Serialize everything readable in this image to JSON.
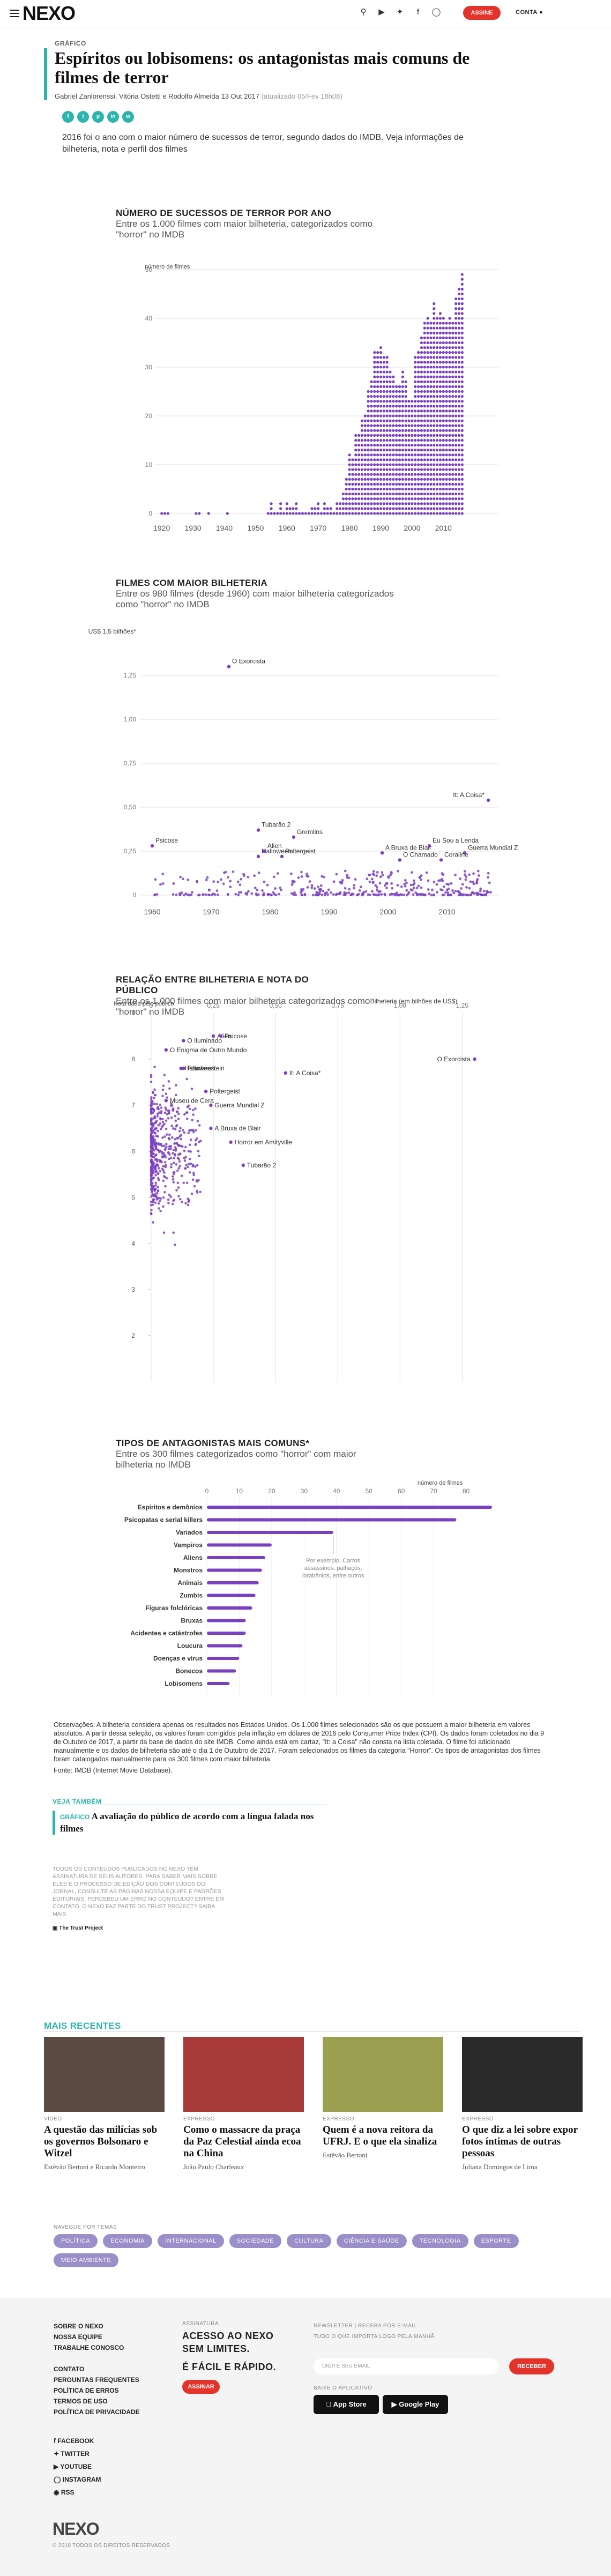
{
  "header": {
    "logo_text": "NEXO",
    "signup_label": "ASSINE",
    "account_label": "CONTA"
  },
  "article": {
    "category": "GRÁFICO",
    "title": "Espíritos ou lobisomens: os antagonistas mais comuns de filmes de terror",
    "byline": "Gabriel Zanlorenssi, Vitória Ostetti e Rodolfo Almeida 13 Out 2017",
    "updated": "(atualizado 05/Fev 18h08)",
    "lede": "2016 foi o ano com o maior número de sucessos de terror, segundo dados do IMDB. Veja informações de bilheteria, nota e perfil dos filmes"
  },
  "colors": {
    "accent": "#2bb5ac",
    "purple": "#7b3fc4",
    "red": "#e4332b"
  },
  "chart_data": [
    {
      "type": "scatter",
      "title": "NÚMERO DE SUCESSOS DE TERROR POR ANO",
      "subtitle": "Entre os 1.000 filmes com maior bilheteria, categorizados como \"horror\" no IMDB",
      "ylabel": "número de filmes",
      "xlim": [
        1918,
        2018
      ],
      "ylim": [
        0,
        50
      ],
      "xticks": [
        "1920",
        "1930",
        "1940",
        "1950",
        "1960",
        "1970",
        "1980",
        "1990",
        "2000",
        "2010"
      ],
      "yticks": [
        "0",
        "10",
        "20",
        "30",
        "40",
        "50"
      ],
      "x": [
        1920,
        1921,
        1922,
        1923,
        1924,
        1925,
        1926,
        1927,
        1928,
        1929,
        1930,
        1931,
        1932,
        1933,
        1934,
        1935,
        1936,
        1937,
        1938,
        1939,
        1940,
        1941,
        1942,
        1943,
        1944,
        1945,
        1946,
        1947,
        1948,
        1949,
        1950,
        1951,
        1952,
        1953,
        1954,
        1955,
        1956,
        1957,
        1958,
        1959,
        1960,
        1961,
        1962,
        1963,
        1964,
        1965,
        1966,
        1967,
        1968,
        1969,
        1970,
        1971,
        1972,
        1973,
        1974,
        1975,
        1976,
        1977,
        1978,
        1979,
        1980,
        1981,
        1982,
        1983,
        1984,
        1985,
        1986,
        1987,
        1988,
        1989,
        1990,
        1991,
        1992,
        1993,
        1994,
        1995,
        1996,
        1997,
        1998,
        1999,
        2000,
        2001,
        2002,
        2003,
        2004,
        2005,
        2006,
        2007,
        2008,
        2009,
        2010,
        2011,
        2012,
        2013,
        2014,
        2015,
        2016
      ],
      "values": [
        1,
        1,
        1,
        0,
        0,
        0,
        0,
        0,
        0,
        0,
        0,
        1,
        1,
        0,
        0,
        1,
        0,
        0,
        0,
        0,
        0,
        1,
        0,
        0,
        0,
        0,
        0,
        0,
        0,
        0,
        0,
        0,
        0,
        0,
        1,
        3,
        1,
        1,
        3,
        1,
        3,
        2,
        2,
        3,
        1,
        1,
        1,
        1,
        2,
        2,
        3,
        1,
        3,
        2,
        2,
        1,
        3,
        3,
        5,
        8,
        13,
        12,
        17,
        17,
        20,
        21,
        26,
        28,
        34,
        34,
        35,
        33,
        33,
        30,
        29,
        27,
        27,
        30,
        28,
        24,
        24,
        33,
        34,
        37,
        40,
        41,
        40,
        44,
        41,
        42,
        41,
        40,
        41,
        40,
        45,
        47,
        50
      ],
      "color": "#7b3fc4"
    },
    {
      "type": "scatter",
      "title": "FILMES COM MAIOR BILHETERIA",
      "subtitle": "Entre os 980 filmes (desde 1960) com maior bilheteria categorizados como \"horror\" no IMDB",
      "ylabel": "US$ 1,5 bilhões*",
      "xlim": [
        1958,
        2018
      ],
      "ylim": [
        0,
        1.5
      ],
      "xticks": [
        "1960",
        "1970",
        "1980",
        "1990",
        "2000",
        "2010"
      ],
      "yticks": [
        "0",
        "0,25",
        "0,50",
        "0,75",
        "1,00",
        "1,25"
      ],
      "labeled_points": [
        {
          "name": "O Exorcista",
          "x": 1973,
          "y": 1.3
        },
        {
          "name": "It: A Coisa*",
          "x": 2017,
          "y": 0.54
        },
        {
          "name": "Tubarão 2",
          "x": 1978,
          "y": 0.37
        },
        {
          "name": "Gremlins",
          "x": 1984,
          "y": 0.33
        },
        {
          "name": "Psicose",
          "x": 1960,
          "y": 0.28
        },
        {
          "name": "Halloween",
          "x": 1978,
          "y": 0.22
        },
        {
          "name": "Alien",
          "x": 1979,
          "y": 0.25
        },
        {
          "name": "Poltergeist",
          "x": 1982,
          "y": 0.22
        },
        {
          "name": "A Bruxa de Blair",
          "x": 1999,
          "y": 0.24
        },
        {
          "name": "Guerra Mundial Z",
          "x": 2013,
          "y": 0.24
        },
        {
          "name": "O Chamado",
          "x": 2002,
          "y": 0.2
        },
        {
          "name": "Eu Sou a Lenda",
          "x": 2007,
          "y": 0.28
        },
        {
          "name": "Coraline",
          "x": 2009,
          "y": 0.2
        }
      ]
    },
    {
      "type": "scatter",
      "title": "RELAÇÃO ENTRE BILHETERIA E NOTA DO PÚBLICO",
      "subtitle": "Entre os 1.000 filmes com maior bilheteria categorizados como \"horror\" no IMDB",
      "xlabel": "Bilheteria (em bilhões de US$)",
      "ylabel": "Nota dada pelo público",
      "xlim": [
        0,
        1.4
      ],
      "ylim": [
        1,
        9
      ],
      "xticks": [
        "0",
        "0,25",
        "0,50",
        "0,75",
        "1,00",
        "1,25"
      ],
      "yticks": [
        "2",
        "3",
        "4",
        "5",
        "6",
        "7",
        "8",
        "9"
      ],
      "labeled_points": [
        {
          "name": "O Iluminado",
          "x": 0.13,
          "y": 8.4
        },
        {
          "name": "Alien",
          "x": 0.25,
          "y": 8.5
        },
        {
          "name": "Psicose",
          "x": 0.28,
          "y": 8.5
        },
        {
          "name": "O Enigma de Outro Mundo",
          "x": 0.06,
          "y": 8.2
        },
        {
          "name": "Frankenstein",
          "x": 0.13,
          "y": 7.8
        },
        {
          "name": "Halloween",
          "x": 0.12,
          "y": 7.8
        },
        {
          "name": "It: A Coisa*",
          "x": 0.54,
          "y": 7.7
        },
        {
          "name": "O Exorcista",
          "x": 1.3,
          "y": 8
        },
        {
          "name": "Poltergeist",
          "x": 0.22,
          "y": 7.3
        },
        {
          "name": "Museu de Cera",
          "x": 0.06,
          "y": 7.1
        },
        {
          "name": "Guerra Mundial Z",
          "x": 0.24,
          "y": 7
        },
        {
          "name": "A Bruxa de Blair",
          "x": 0.24,
          "y": 6.5
        },
        {
          "name": "Horror em Amityville",
          "x": 0.32,
          "y": 6.2
        },
        {
          "name": "Tubarão 2",
          "x": 0.37,
          "y": 5.7
        }
      ]
    },
    {
      "type": "bar",
      "title": "TIPOS DE ANTAGONISTAS MAIS COMUNS*",
      "subtitle": "Entre os 300 filmes categorizados como \"horror\" com maior bilheteria no IMDB",
      "legend_label": "número de filmes",
      "annotation": "Por exemplo, Carros assassinos, palhaços, lorabênios, entre outros",
      "xlim": [
        0,
        90
      ],
      "xticks": [
        "0",
        "10",
        "20",
        "30",
        "40",
        "50",
        "60",
        "70",
        "80"
      ],
      "categories": [
        "Espíritos e demônios",
        "Psicopatas e serial killers",
        "Variados",
        "Vampiros",
        "Aliens",
        "Monstros",
        "Animais",
        "Zumbis",
        "Figuras folclóricas",
        "Bruxas",
        "Acidentes e catástrofes",
        "Loucura",
        "Doenças e vírus",
        "Bonecos",
        "Lobisomens"
      ],
      "values": [
        88,
        77,
        39,
        20,
        18,
        17,
        16,
        15,
        14,
        12,
        12,
        11,
        10,
        9,
        7
      ],
      "color": "#7b3fc4"
    }
  ],
  "notes": "Observações: A bilheteria considera apenas os resultados nos Estados Unidos. Os 1.000 filmes selecionados são os que possuem a maior bilheteria em valores absolutos. A partir dessa seleção, os valores foram corrigidos pela inflação em dólares de 2016 pelo Consumer Price Index (CPI). Os dados foram coletados no dia 9 de Outubro de 2017, a partir da base de dados do site IMDB. Como ainda está em cartaz, \"It: a Coisa\" não consta na lista coletada. O filme foi adicionado manualmente e os dados de bilheteria são até o dia 1 de Outubro de 2017. Foram selecionados os filmes da categoria \"Horror\". Os tipos de antagonistas dos filmes foram catalogados manualmente para os 300 filmes com maior bilheteria.",
  "source": "Fonte: IMDB (Internet Movie Database).",
  "see_also": {
    "label": "VEJA TAMBÉM",
    "tag": "GRÁFICO",
    "title": "A avaliação do público de acordo com a língua falada nos filmes"
  },
  "disclaimer": "Todos os conteúdos publicados no Nexo têm assinatura de seus autores. Para saber mais sobre eles e o processo de edição dos conteúdos do jornal, consulte as páginas Nossa equipe e Padrões editoriais. Percebeu um erro no conteúdo? Entre em contato. O Nexo faz parte do Trust Project? Saiba mais",
  "trust_label": "The Trust Project",
  "recent": {
    "label": "MAIS RECENTES",
    "cards": [
      {
        "tag": "VÍDEO",
        "title": "A questão das milícias sob os governos Bolsonaro e Witzel",
        "author": "Estêvão Bertoni e Ricardo Monteiro",
        "color": "#5a4a42"
      },
      {
        "tag": "EXPRESSO",
        "title": "Como o massacre da praça da Paz Celestial ainda ecoa na China",
        "author": "João Paulo Charleaux",
        "color": "#a83a3a"
      },
      {
        "tag": "EXPRESSO",
        "title": "Quem é a nova reitora da UFRJ. E o que ela sinaliza",
        "author": "Estêvão Bertoni",
        "color": "#9aa050"
      },
      {
        "tag": "EXPRESSO",
        "title": "O que diz a lei sobre expor fotos íntimas de outras pessoas",
        "author": "Juliana Domingos de Lima",
        "color": "#2a2a2a"
      }
    ]
  },
  "nav": {
    "label": "NAVEGUE POR TEMAS",
    "topics": [
      "POLÍTICA",
      "ECONOMIA",
      "INTERNACIONAL",
      "SOCIEDADE",
      "CULTURA",
      "CIÊNCIA E SAÚDE",
      "TECNOLOGIA",
      "ESPORTE",
      "MEIO AMBIENTE"
    ]
  },
  "footer": {
    "links": [
      "SOBRE O NEXO",
      "NOSSA EQUIPE",
      "TRABALHE CONOSCO",
      "",
      "CONTATO",
      "PERGUNTAS FREQUENTES",
      "POLÍTICA DE ERROS",
      "TERMOS DE USO",
      "POLÍTICA DE PRIVACIDADE"
    ],
    "sub_label": "ASSINATURA",
    "sub_title": "ACESSO AO NEXO SEM LIMITES.",
    "sub_tag": "É FÁCIL E RÁPIDO.",
    "sub_button": "ASSINAR",
    "newsletter_label": "NEWSLETTER | RECEBA POR E-MAIL",
    "newsletter_sub": "TUDO O QUE IMPORTA LOGO PELA MANHÃ",
    "email_placeholder": "DIGITE SEU EMAIL",
    "newsletter_button": "RECEBER",
    "app_label": "BAIXE O APLICATIVO",
    "app_store": "App Store",
    "google_play": "Google Play",
    "social": [
      "FACEBOOK",
      "TWITTER",
      "YOUTUBE",
      "INSTAGRAM",
      "RSS"
    ],
    "logo": "NEXO",
    "copyright": "© 2019 TODOS OS DIREITOS RESERVADOS"
  }
}
